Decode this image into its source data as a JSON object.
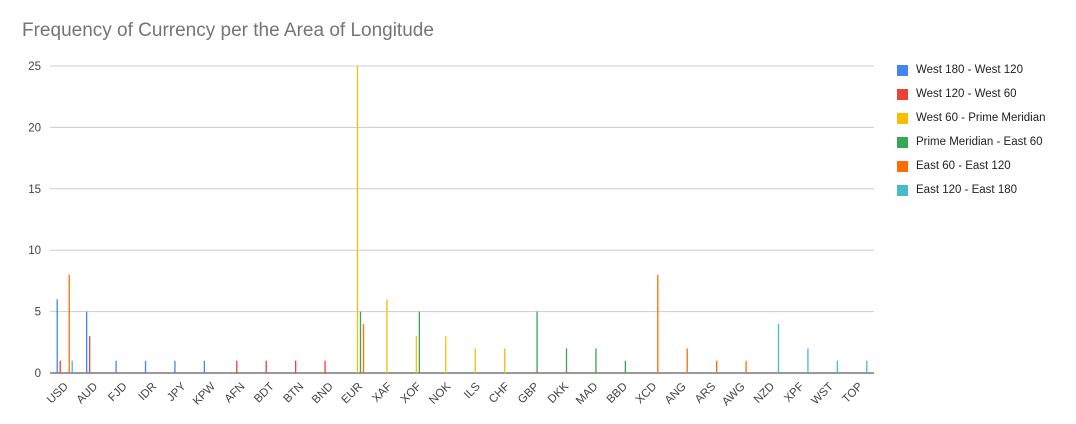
{
  "chart_data": {
    "type": "bar",
    "title": "Frequency of Currency per the Area of Longitude",
    "xlabel": "",
    "ylabel": "",
    "ylim": [
      0,
      25
    ],
    "yticks": [
      0,
      5,
      10,
      15,
      20,
      25
    ],
    "grid": true,
    "legend_position": "right",
    "categories": [
      "USD",
      "AUD",
      "FJD",
      "IDR",
      "JPY",
      "KPW",
      "AFN",
      "BDT",
      "BTN",
      "BND",
      "EUR",
      "XAF",
      "XOF",
      "NOK",
      "ILS",
      "CHF",
      "GBP",
      "DKK",
      "MAD",
      "BBD",
      "XCD",
      "ANG",
      "ARS",
      "AWG",
      "NZD",
      "XPF",
      "WST",
      "TOP"
    ],
    "series": [
      {
        "name": "West 180 - West 120",
        "color": "#4285f4",
        "values": [
          6,
          5,
          1,
          1,
          1,
          1,
          0,
          0,
          0,
          0,
          0,
          0,
          0,
          0,
          0,
          0,
          0,
          0,
          0,
          0,
          0,
          0,
          0,
          0,
          0,
          0,
          0,
          0
        ]
      },
      {
        "name": "West 120 - West 60",
        "color": "#ea4335",
        "values": [
          1,
          3,
          0,
          0,
          0,
          0,
          1,
          1,
          1,
          1,
          0,
          0,
          0,
          0,
          0,
          0,
          0,
          0,
          0,
          0,
          0,
          0,
          0,
          0,
          0,
          0,
          0,
          0
        ]
      },
      {
        "name": "West 60 - Prime Meridian",
        "color": "#fbbc04",
        "values": [
          0,
          0,
          0,
          0,
          0,
          0,
          0,
          0,
          0,
          0,
          25,
          6,
          3,
          3,
          2,
          2,
          0,
          0,
          0,
          0,
          0,
          0,
          0,
          0,
          0,
          0,
          0,
          0
        ]
      },
      {
        "name": "Prime Meridian - East 60",
        "color": "#34a853",
        "values": [
          0,
          0,
          0,
          0,
          0,
          0,
          0,
          0,
          0,
          0,
          5,
          0,
          5,
          0,
          0,
          0,
          5,
          2,
          2,
          1,
          0,
          0,
          0,
          0,
          0,
          0,
          0,
          0
        ]
      },
      {
        "name": "East 60 - East 120",
        "color": "#ff6d01",
        "values": [
          8,
          0,
          0,
          0,
          0,
          0,
          0,
          0,
          0,
          0,
          4,
          0,
          0,
          0,
          0,
          0,
          0,
          0,
          0,
          0,
          8,
          2,
          1,
          1,
          0,
          0,
          0,
          0
        ]
      },
      {
        "name": "East 120 - East 180",
        "color": "#46bdc6",
        "values": [
          1,
          0,
          0,
          0,
          0,
          0,
          0,
          0,
          0,
          0,
          0,
          0,
          0,
          0,
          0,
          0,
          0,
          0,
          0,
          0,
          0,
          0,
          0,
          0,
          4,
          2,
          1,
          1
        ]
      }
    ]
  }
}
